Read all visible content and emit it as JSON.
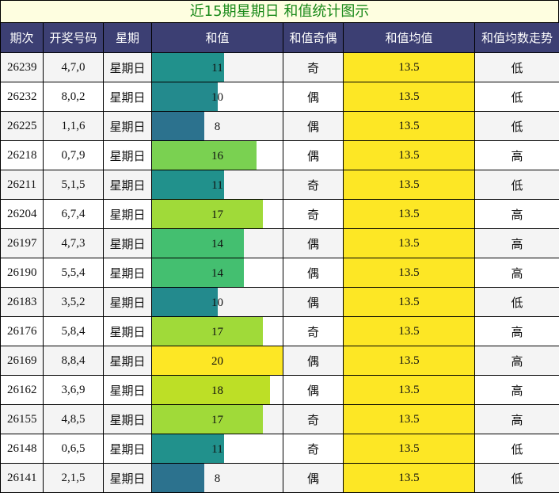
{
  "title": "近15期星期日 和值统计图示",
  "headers": [
    "期次",
    "开奖号码",
    "星期",
    "和值",
    "和值奇偶",
    "和值均值",
    "和值均数走势"
  ],
  "max_sum": 20,
  "rows": [
    {
      "issue": "26239",
      "numbers": "4,7,0",
      "weekday": "星期日",
      "sum": "11",
      "parity": "奇",
      "avg": "13.5",
      "trend": "低",
      "bar_color": "#21918c"
    },
    {
      "issue": "26232",
      "numbers": "8,0,2",
      "weekday": "星期日",
      "sum": "10",
      "parity": "偶",
      "avg": "13.5",
      "trend": "低",
      "bar_color": "#238a8d"
    },
    {
      "issue": "26225",
      "numbers": "1,1,6",
      "weekday": "星期日",
      "sum": "8",
      "parity": "偶",
      "avg": "13.5",
      "trend": "低",
      "bar_color": "#2c728e"
    },
    {
      "issue": "26218",
      "numbers": "0,7,9",
      "weekday": "星期日",
      "sum": "16",
      "parity": "偶",
      "avg": "13.5",
      "trend": "高",
      "bar_color": "#7ad151"
    },
    {
      "issue": "26211",
      "numbers": "5,1,5",
      "weekday": "星期日",
      "sum": "11",
      "parity": "奇",
      "avg": "13.5",
      "trend": "低",
      "bar_color": "#21918c"
    },
    {
      "issue": "26204",
      "numbers": "6,7,4",
      "weekday": "星期日",
      "sum": "17",
      "parity": "奇",
      "avg": "13.5",
      "trend": "高",
      "bar_color": "#a0da39"
    },
    {
      "issue": "26197",
      "numbers": "4,7,3",
      "weekday": "星期日",
      "sum": "14",
      "parity": "偶",
      "avg": "13.5",
      "trend": "高",
      "bar_color": "#44bf70"
    },
    {
      "issue": "26190",
      "numbers": "5,5,4",
      "weekday": "星期日",
      "sum": "14",
      "parity": "偶",
      "avg": "13.5",
      "trend": "高",
      "bar_color": "#44bf70"
    },
    {
      "issue": "26183",
      "numbers": "3,5,2",
      "weekday": "星期日",
      "sum": "10",
      "parity": "偶",
      "avg": "13.5",
      "trend": "低",
      "bar_color": "#238a8d"
    },
    {
      "issue": "26176",
      "numbers": "5,8,4",
      "weekday": "星期日",
      "sum": "17",
      "parity": "奇",
      "avg": "13.5",
      "trend": "高",
      "bar_color": "#a0da39"
    },
    {
      "issue": "26169",
      "numbers": "8,8,4",
      "weekday": "星期日",
      "sum": "20",
      "parity": "偶",
      "avg": "13.5",
      "trend": "高",
      "bar_color": "#fde725"
    },
    {
      "issue": "26162",
      "numbers": "3,6,9",
      "weekday": "星期日",
      "sum": "18",
      "parity": "偶",
      "avg": "13.5",
      "trend": "高",
      "bar_color": "#bddf26"
    },
    {
      "issue": "26155",
      "numbers": "4,8,5",
      "weekday": "星期日",
      "sum": "17",
      "parity": "奇",
      "avg": "13.5",
      "trend": "高",
      "bar_color": "#a0da39"
    },
    {
      "issue": "26148",
      "numbers": "0,6,5",
      "weekday": "星期日",
      "sum": "11",
      "parity": "奇",
      "avg": "13.5",
      "trend": "低",
      "bar_color": "#21918c"
    },
    {
      "issue": "26141",
      "numbers": "2,1,5",
      "weekday": "星期日",
      "sum": "8",
      "parity": "偶",
      "avg": "13.5",
      "trend": "低",
      "bar_color": "#2c728e"
    }
  ]
}
